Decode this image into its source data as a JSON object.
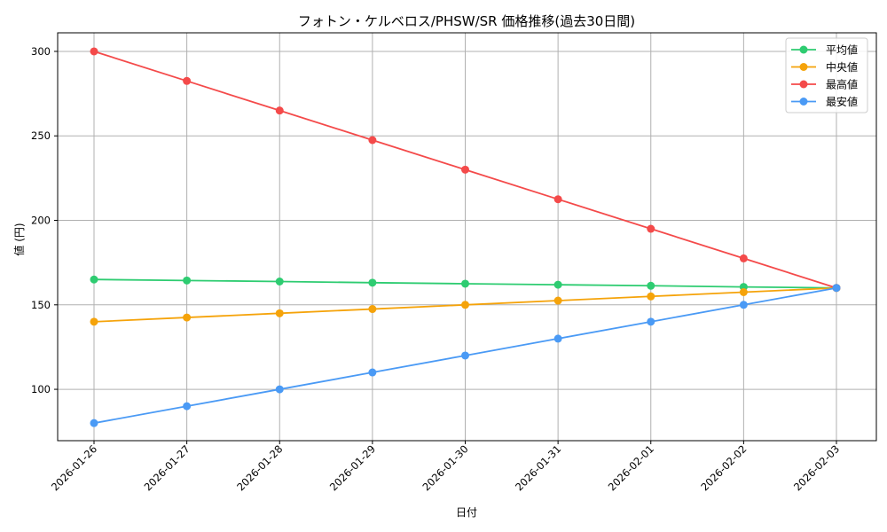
{
  "chart_data": {
    "type": "line",
    "title": "フォトン・ケルベロス/PHSW/SR 価格推移(過去30日間)",
    "xlabel": "日付",
    "ylabel": "値 (円)",
    "categories": [
      "2026-01-26",
      "2026-01-27",
      "2026-01-28",
      "2026-01-29",
      "2026-01-30",
      "2026-01-31",
      "2026-02-01",
      "2026-02-02",
      "2026-02-03"
    ],
    "ylim": [
      69.6,
      311
    ],
    "yticks": [
      100,
      150,
      200,
      250,
      300
    ],
    "grid": true,
    "legend_position": "upper right",
    "series": [
      {
        "name": "平均値",
        "color": "#2ecc71",
        "values": [
          165,
          164.4,
          163.8,
          163.1,
          162.5,
          161.9,
          161.3,
          160.6,
          160
        ]
      },
      {
        "name": "中央値",
        "color": "#f5a30a",
        "values": [
          140,
          142.5,
          145,
          147.5,
          150,
          152.5,
          155,
          157.5,
          160
        ]
      },
      {
        "name": "最高値",
        "color": "#f44a4a",
        "values": [
          300,
          282.5,
          265,
          247.5,
          230,
          212.5,
          195,
          177.5,
          160
        ]
      },
      {
        "name": "最安値",
        "color": "#4a9af5",
        "values": [
          80,
          90,
          100,
          110,
          120,
          130,
          140,
          150,
          160
        ]
      }
    ]
  }
}
